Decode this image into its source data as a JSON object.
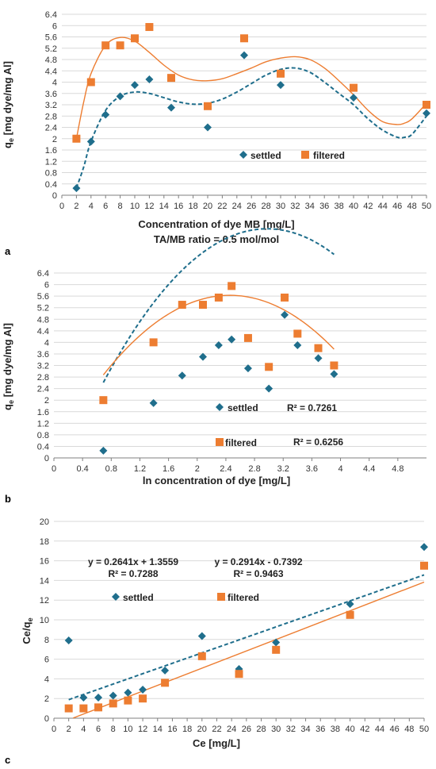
{
  "colors": {
    "settled": "#1f6e8c",
    "filtered": "#ed7d31",
    "grid": "#d9d9d9",
    "axis": "#7f7f7f"
  },
  "chart_data": [
    {
      "id": "a",
      "panel_label": "a",
      "type": "scatter",
      "xlabel": "Concentration of dye MB [mg/L]",
      "xlabel2": "TA/MB ratio = 0.5 mol/mol",
      "ylabel": "q",
      "ylabel_sub": "e",
      "ylabel_rest": " [mg dye/mg Al]",
      "xlim": [
        0,
        50
      ],
      "xstep": 2,
      "ylim": [
        0,
        6.4
      ],
      "ystep": 0.4,
      "xticklabels": [
        "0",
        "2",
        "4",
        "6",
        "8",
        "10",
        "12",
        "14",
        "16",
        "18",
        "20",
        "22",
        "24",
        "26",
        "28",
        "30",
        "32",
        "34",
        "36",
        "38",
        "40",
        "42",
        "44",
        "46",
        "48",
        "50"
      ],
      "yticklabels": [
        "0",
        "0.4",
        "0.8",
        "1.2",
        "1.6",
        "2",
        "2.4",
        "2.8",
        "3.2",
        "3.6",
        "4",
        "4.4",
        "4.8",
        "5.2",
        "5.6",
        "6",
        "6.4"
      ],
      "legend": [
        {
          "name": "settled"
        },
        {
          "name": "filtered"
        }
      ],
      "series": [
        {
          "name": "settled",
          "marker": "diamond",
          "x": [
            2,
            4,
            6,
            8,
            10,
            12,
            15,
            20,
            25,
            30,
            40,
            50
          ],
          "y": [
            0.25,
            1.9,
            2.85,
            3.5,
            3.9,
            4.1,
            3.1,
            2.4,
            4.95,
            3.9,
            3.45,
            2.9
          ],
          "trend": {
            "style": "dashed",
            "x": [
              2,
              3,
              4,
              6,
              8,
              10,
              12,
              14,
              16,
              18,
              20,
              22,
              24,
              26,
              28,
              30,
              32,
              34,
              36,
              38,
              40,
              42,
              44,
              46,
              47,
              48,
              50
            ],
            "y": [
              0.25,
              1.0,
              1.9,
              3.0,
              3.5,
              3.65,
              3.6,
              3.45,
              3.3,
              3.22,
              3.25,
              3.4,
              3.65,
              3.95,
              4.25,
              4.45,
              4.5,
              4.35,
              4.0,
              3.6,
              3.2,
              2.7,
              2.3,
              2.05,
              2.05,
              2.15,
              2.8
            ]
          }
        },
        {
          "name": "filtered",
          "marker": "square",
          "x": [
            2,
            4,
            6,
            8,
            10,
            12,
            15,
            20,
            25,
            30,
            40,
            50
          ],
          "y": [
            2.0,
            4.0,
            5.3,
            5.3,
            5.55,
            5.95,
            4.15,
            3.15,
            5.55,
            4.3,
            3.8,
            3.2
          ],
          "trend": {
            "style": "solid",
            "x": [
              2,
              3,
              4,
              6,
              8,
              10,
              12,
              14,
              16,
              18,
              20,
              22,
              24,
              26,
              28,
              30,
              32,
              34,
              36,
              38,
              40,
              42,
              44,
              46,
              47,
              48,
              50
            ],
            "y": [
              2.0,
              3.3,
              4.3,
              5.3,
              5.58,
              5.45,
              5.05,
              4.6,
              4.25,
              4.08,
              4.05,
              4.12,
              4.3,
              4.5,
              4.72,
              4.85,
              4.9,
              4.8,
              4.5,
              4.05,
              3.55,
              3.0,
              2.6,
              2.5,
              2.55,
              2.7,
              3.25
            ]
          }
        }
      ]
    },
    {
      "id": "b",
      "panel_label": "b",
      "type": "scatter",
      "xlabel": "ln concentration of dye [mg/L]",
      "ylabel": "q",
      "ylabel_sub": "e",
      "ylabel_rest": " [mg dye/mg Al]",
      "xlim": [
        0,
        5.2
      ],
      "xstep": 0.4,
      "ylim": [
        0,
        6.4
      ],
      "ystep": 0.4,
      "xticklabels": [
        "0",
        "0.4",
        "0.8",
        "1.2",
        "1.6",
        "2",
        "2.4",
        "2.8",
        "3.2",
        "3.6",
        "4",
        "4.4",
        "4.8"
      ],
      "yticklabels": [
        "0",
        "0.4",
        "0.8",
        "1.2",
        "1.6",
        "2",
        "2.4",
        "2.8",
        "3.2",
        "3.6",
        "4",
        "4.4",
        "4.8",
        "5.2",
        "5.6",
        "6",
        "6.4"
      ],
      "legend": [
        {
          "name": "settled"
        },
        {
          "name": "filtered"
        }
      ],
      "annotations": [
        {
          "text": "R² = 0.7261"
        },
        {
          "text": "R² = 0.6256"
        }
      ],
      "series": [
        {
          "name": "settled",
          "marker": "diamond",
          "x": [
            0.69,
            1.39,
            1.79,
            2.08,
            2.3,
            2.48,
            2.71,
            3.0,
            3.22,
            3.4,
            3.69,
            3.91
          ],
          "y": [
            0.25,
            1.9,
            2.85,
            3.5,
            3.9,
            4.1,
            3.1,
            2.4,
            4.95,
            3.9,
            3.45,
            2.9
          ],
          "trend": {
            "style": "dashed",
            "poly": [
              -1.018,
              6.06,
              -1.088
            ],
            "xrange": [
              0.69,
              3.91
            ]
          }
        },
        {
          "name": "filtered",
          "marker": "square",
          "x": [
            0.69,
            1.39,
            1.79,
            2.08,
            2.3,
            2.48,
            2.71,
            3.0,
            3.22,
            3.4,
            3.69,
            3.91
          ],
          "y": [
            2.0,
            4.0,
            5.3,
            5.3,
            5.55,
            5.95,
            4.15,
            3.15,
            5.55,
            4.3,
            3.8,
            3.2
          ],
          "trend": {
            "style": "solid",
            "poly": [
              -0.883,
              4.338,
              0.3
            ],
            "xrange": [
              0.69,
              3.91
            ]
          }
        }
      ]
    },
    {
      "id": "c",
      "panel_label": "c",
      "type": "scatter",
      "xlabel": "Ce [mg/L]",
      "ylabel": "Ce/q",
      "ylabel_sub": "e",
      "ylabel_rest": "",
      "xlim": [
        0,
        50
      ],
      "xstep": 2,
      "ylim": [
        0,
        20
      ],
      "ystep": 2,
      "xticklabels": [
        "0",
        "2",
        "4",
        "6",
        "8",
        "10",
        "12",
        "14",
        "16",
        "18",
        "20",
        "22",
        "24",
        "26",
        "28",
        "30",
        "32",
        "34",
        "36",
        "38",
        "40",
        "42",
        "44",
        "46",
        "48",
        "50"
      ],
      "yticklabels": [
        "0",
        "2",
        "4",
        "6",
        "8",
        "10",
        "12",
        "14",
        "16",
        "18",
        "20"
      ],
      "legend": [
        {
          "name": "settled"
        },
        {
          "name": "filtered"
        }
      ],
      "annotations": [
        {
          "text": "y = 0.2641x + 1.3559"
        },
        {
          "text": "R² = 0.7288"
        },
        {
          "text": "y = 0.2914x - 0.7392"
        },
        {
          "text": "R² = 0.9463"
        }
      ],
      "series": [
        {
          "name": "settled",
          "marker": "diamond",
          "x": [
            2,
            4,
            6,
            8,
            10,
            12,
            15,
            20,
            25,
            30,
            40,
            50
          ],
          "y": [
            7.9,
            2.1,
            2.1,
            2.3,
            2.6,
            2.9,
            4.85,
            8.35,
            5.0,
            7.7,
            11.6,
            17.4
          ],
          "trend": {
            "style": "dashed",
            "line": [
              0.2641,
              1.3559
            ],
            "xrange": [
              2,
              50
            ]
          }
        },
        {
          "name": "filtered",
          "marker": "square",
          "x": [
            2,
            4,
            6,
            8,
            10,
            12,
            15,
            20,
            25,
            30,
            40,
            50
          ],
          "y": [
            1.0,
            1.0,
            1.1,
            1.5,
            1.8,
            2.0,
            3.6,
            6.3,
            4.5,
            6.95,
            10.5,
            15.5
          ],
          "trend": {
            "style": "solid",
            "line": [
              0.2914,
              -0.7392
            ],
            "xrange": [
              2.6,
              50
            ]
          }
        }
      ]
    }
  ]
}
